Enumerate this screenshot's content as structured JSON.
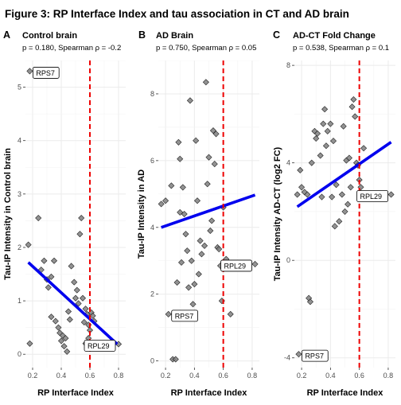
{
  "figure_title": "Figure 3: RP Interface Index and tau association in CT and AD brain",
  "colors": {
    "point_fill": "#7f7f7f",
    "point_stroke": "#222222",
    "fit_line": "#0000ee",
    "threshold_line": "#ee0000",
    "grid": "#ebebeb"
  },
  "chart_data": [
    {
      "type": "scatter",
      "panel_letter": "A",
      "title": "Control brain",
      "subtitle": "p = 0.180, Spearman ρ = -0.2",
      "xlabel": "RP Interface Index",
      "ylabel": "Tau-IP Intensity in Control brain",
      "xlim": [
        0.15,
        0.85
      ],
      "ylim": [
        -0.25,
        5.5
      ],
      "xticks": [
        0.2,
        0.4,
        0.6,
        0.8
      ],
      "xtick_labels": [
        "0.2",
        "0.4",
        "0.6",
        "0.8"
      ],
      "yticks": [
        0,
        1,
        2,
        3,
        4,
        5
      ],
      "ytick_labels": [
        "0",
        "1",
        "2",
        "3",
        "4",
        "5"
      ],
      "grid": true,
      "vline_x": 0.6,
      "fit": {
        "x": [
          0.17,
          0.79
        ],
        "y": [
          1.72,
          0.19
        ]
      },
      "points": [
        [
          0.18,
          5.3
        ],
        [
          0.17,
          2.05
        ],
        [
          0.18,
          0.2
        ],
        [
          0.24,
          2.55
        ],
        [
          0.26,
          1.58
        ],
        [
          0.28,
          1.75
        ],
        [
          0.3,
          1.4
        ],
        [
          0.31,
          1.25
        ],
        [
          0.33,
          1.45
        ],
        [
          0.35,
          1.75
        ],
        [
          0.33,
          0.7
        ],
        [
          0.36,
          0.62
        ],
        [
          0.38,
          0.5
        ],
        [
          0.39,
          0.4
        ],
        [
          0.4,
          0.25
        ],
        [
          0.41,
          0.35
        ],
        [
          0.42,
          0.15
        ],
        [
          0.43,
          0.3
        ],
        [
          0.44,
          0.05
        ],
        [
          0.45,
          0.8
        ],
        [
          0.46,
          0.65
        ],
        [
          0.47,
          1.65
        ],
        [
          0.49,
          1.35
        ],
        [
          0.5,
          1.05
        ],
        [
          0.51,
          1.2
        ],
        [
          0.52,
          0.95
        ],
        [
          0.53,
          2.25
        ],
        [
          0.54,
          2.55
        ],
        [
          0.55,
          1.05
        ],
        [
          0.56,
          0.6
        ],
        [
          0.57,
          0.85
        ],
        [
          0.58,
          0.75
        ],
        [
          0.59,
          0.55
        ],
        [
          0.6,
          0.45
        ],
        [
          0.61,
          0.78
        ],
        [
          0.62,
          0.72
        ],
        [
          0.63,
          0.62
        ],
        [
          0.59,
          0.3
        ],
        [
          0.57,
          0.2
        ],
        [
          0.8,
          0.19
        ]
      ],
      "labels": [
        {
          "text": "RPS7",
          "x": 0.18,
          "y": 5.3
        },
        {
          "text": "RPL29",
          "x": 0.8,
          "y": 0.19
        }
      ]
    },
    {
      "type": "scatter",
      "panel_letter": "B",
      "title": "AD Brain",
      "subtitle": "p = 0.750, Spearman ρ = 0.05",
      "xlabel": "RP Interface Index",
      "ylabel": "Tau-IP Intensity in AD",
      "xlim": [
        0.15,
        0.85
      ],
      "ylim": [
        -0.2,
        9.0
      ],
      "xticks": [
        0.2,
        0.4,
        0.6,
        0.8
      ],
      "xtick_labels": [
        "0.2",
        "0.4",
        "0.6",
        "0.8"
      ],
      "yticks": [
        0,
        2,
        4,
        6,
        8
      ],
      "ytick_labels": [
        "0",
        "2",
        "4",
        "6",
        "8"
      ],
      "grid": true,
      "vline_x": 0.6,
      "fit": {
        "x": [
          0.17,
          0.82
        ],
        "y": [
          4.0,
          4.97
        ]
      },
      "points": [
        [
          0.17,
          4.7
        ],
        [
          0.2,
          4.8
        ],
        [
          0.22,
          1.4
        ],
        [
          0.24,
          5.25
        ],
        [
          0.25,
          0.05
        ],
        [
          0.27,
          0.05
        ],
        [
          0.28,
          2.35
        ],
        [
          0.29,
          6.55
        ],
        [
          0.3,
          4.45
        ],
        [
          0.3,
          6.05
        ],
        [
          0.31,
          2.95
        ],
        [
          0.32,
          5.2
        ],
        [
          0.33,
          4.4
        ],
        [
          0.34,
          3.8
        ],
        [
          0.35,
          3.3
        ],
        [
          0.36,
          2.2
        ],
        [
          0.37,
          7.8
        ],
        [
          0.38,
          3.0
        ],
        [
          0.39,
          1.7
        ],
        [
          0.4,
          2.3
        ],
        [
          0.41,
          6.6
        ],
        [
          0.42,
          4.8
        ],
        [
          0.43,
          2.6
        ],
        [
          0.44,
          3.6
        ],
        [
          0.45,
          3.2
        ],
        [
          0.47,
          3.45
        ],
        [
          0.48,
          8.35
        ],
        [
          0.49,
          5.3
        ],
        [
          0.5,
          6.1
        ],
        [
          0.51,
          3.9
        ],
        [
          0.52,
          4.2
        ],
        [
          0.53,
          6.9
        ],
        [
          0.54,
          5.9
        ],
        [
          0.55,
          6.8
        ],
        [
          0.56,
          3.4
        ],
        [
          0.57,
          3.35
        ],
        [
          0.58,
          2.85
        ],
        [
          0.59,
          1.8
        ],
        [
          0.6,
          4.6
        ],
        [
          0.62,
          3.05
        ],
        [
          0.65,
          1.4
        ],
        [
          0.82,
          2.9
        ]
      ],
      "labels": [
        {
          "text": "RPL29",
          "x": 0.82,
          "y": 2.9
        },
        {
          "text": "RPS7",
          "x": 0.22,
          "y": 1.4
        }
      ]
    },
    {
      "type": "scatter",
      "panel_letter": "C",
      "title": "AD-CT Fold Change",
      "subtitle": "p = 0.538, Spearman ρ = 0.1",
      "xlabel": "RP Interface Index",
      "ylabel": "Tau-IP Intensity AD-CT (log2 FC)",
      "xlim": [
        0.15,
        0.85
      ],
      "ylim": [
        -4.4,
        8.2
      ],
      "xticks": [
        0.2,
        0.4,
        0.6,
        0.8
      ],
      "xtick_labels": [
        "0.2",
        "0.4",
        "0.6",
        "0.8"
      ],
      "yticks": [
        -4,
        0,
        4,
        8
      ],
      "ytick_labels": [
        "-4",
        "0",
        "4",
        "8"
      ],
      "grid": true,
      "vline_x": 0.6,
      "fit": {
        "x": [
          0.17,
          0.82
        ],
        "y": [
          2.2,
          4.85
        ]
      },
      "points": [
        [
          0.17,
          2.7
        ],
        [
          0.18,
          -3.85
        ],
        [
          0.19,
          3.7
        ],
        [
          0.2,
          3.0
        ],
        [
          0.22,
          2.8
        ],
        [
          0.24,
          2.7
        ],
        [
          0.25,
          -1.55
        ],
        [
          0.26,
          -1.7
        ],
        [
          0.27,
          4.0
        ],
        [
          0.29,
          5.3
        ],
        [
          0.3,
          5.0
        ],
        [
          0.31,
          5.2
        ],
        [
          0.33,
          4.3
        ],
        [
          0.34,
          2.6
        ],
        [
          0.35,
          5.6
        ],
        [
          0.36,
          6.2
        ],
        [
          0.37,
          4.7
        ],
        [
          0.38,
          5.3
        ],
        [
          0.4,
          5.6
        ],
        [
          0.41,
          2.6
        ],
        [
          0.42,
          4.9
        ],
        [
          0.43,
          1.4
        ],
        [
          0.44,
          3.1
        ],
        [
          0.46,
          1.6
        ],
        [
          0.48,
          2.7
        ],
        [
          0.49,
          5.5
        ],
        [
          0.5,
          2.0
        ],
        [
          0.51,
          4.1
        ],
        [
          0.52,
          2.3
        ],
        [
          0.53,
          4.2
        ],
        [
          0.54,
          3.0
        ],
        [
          0.55,
          6.3
        ],
        [
          0.56,
          6.6
        ],
        [
          0.57,
          5.9
        ],
        [
          0.58,
          4.0
        ],
        [
          0.59,
          3.9
        ],
        [
          0.6,
          3.3
        ],
        [
          0.61,
          3.0
        ],
        [
          0.63,
          4.6
        ],
        [
          0.82,
          2.7
        ]
      ],
      "labels": [
        {
          "text": "RPL29",
          "x": 0.82,
          "y": 2.7
        },
        {
          "text": "RPS7",
          "x": 0.18,
          "y": -3.85
        }
      ]
    }
  ]
}
